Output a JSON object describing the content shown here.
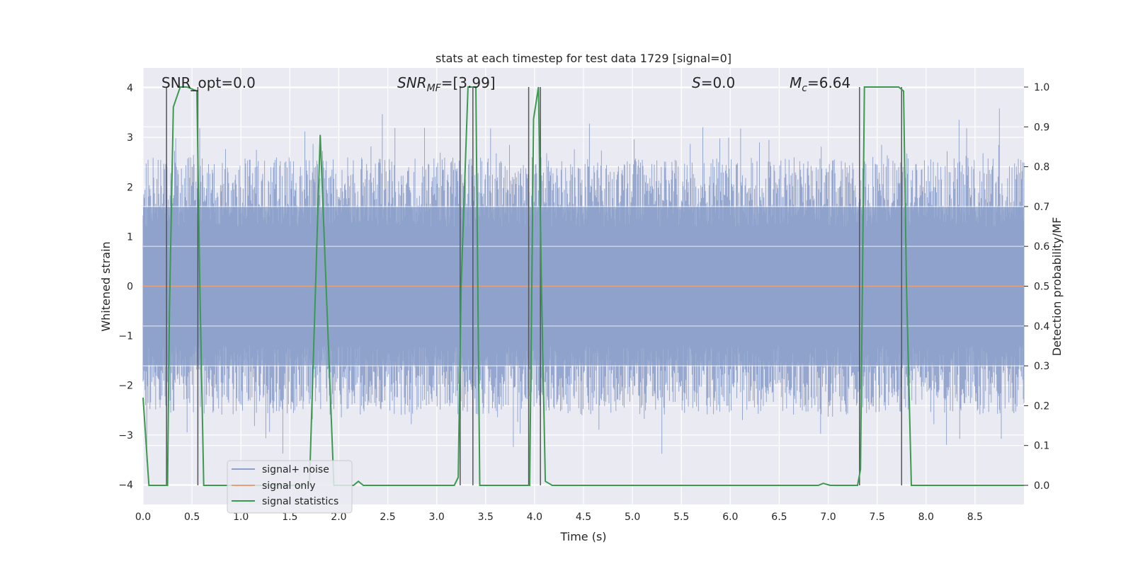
{
  "chart_data": {
    "type": "line",
    "title": "stats at each timestep for test data 1729 [signal=0]",
    "xlabel": "Time (s)",
    "ylabel": "Whitened strain",
    "y2label": "Detection probability/MF",
    "xlim": [
      0,
      9.0
    ],
    "ylim": [
      -4.4,
      4.4
    ],
    "y2lim": [
      -0.048,
      1.048
    ],
    "xticks": [
      "0.0",
      "0.5",
      "1.0",
      "1.5",
      "2.0",
      "2.5",
      "3.0",
      "3.5",
      "4.0",
      "4.5",
      "5.0",
      "5.5",
      "6.0",
      "6.5",
      "7.0",
      "7.5",
      "8.0",
      "8.5"
    ],
    "yticks": [
      "4",
      "3",
      "2",
      "1",
      "0",
      "−1",
      "−2",
      "−3",
      "−4"
    ],
    "y2ticks": [
      "1.0",
      "0.9",
      "0.8",
      "0.7",
      "0.6",
      "0.5",
      "0.4",
      "0.3",
      "0.2",
      "0.1",
      "0.0"
    ],
    "annotations": {
      "snr_opt": "SNR_opt=0.0",
      "snr_mf_base": "SNR",
      "snr_mf_sub": "MF",
      "snr_mf_val": "=[3.99]",
      "s_var": "S",
      "s_val": "=0.0",
      "mc_base": "M",
      "mc_sub": "c",
      "mc_val": "=6.64"
    },
    "legend_position": "lower-left",
    "series": [
      {
        "name": "signal+ noise",
        "color": "#8da0cb",
        "description": "noisy whitened strain roughly within ±3.5"
      },
      {
        "name": "signal only",
        "color": "#e5a07a",
        "values": "zero everywhere"
      },
      {
        "name": "signal statistics",
        "color": "#3c9a50",
        "axis": "right",
        "x": [
          0.0,
          0.06,
          0.25,
          0.27,
          0.31,
          0.38,
          0.45,
          0.55,
          0.58,
          0.62,
          1.7,
          1.81,
          1.95,
          2.15,
          2.2,
          2.25,
          3.18,
          3.22,
          3.25,
          3.32,
          3.4,
          3.44,
          3.95,
          3.99,
          4.04,
          4.07,
          4.11,
          4.18,
          6.9,
          6.95,
          7.02,
          7.3,
          7.33,
          7.37,
          7.72,
          7.77,
          7.8,
          7.85,
          9.0
        ],
        "y": [
          0.22,
          0.0,
          0.0,
          0.44,
          0.95,
          1.0,
          1.0,
          0.99,
          0.5,
          0.0,
          0.0,
          0.88,
          0.0,
          0.0,
          0.01,
          0.0,
          0.0,
          0.02,
          0.5,
          1.0,
          1.0,
          0.0,
          0.0,
          0.92,
          1.0,
          0.5,
          0.01,
          0.0,
          0.0,
          0.005,
          0.0,
          0.0,
          0.04,
          1.0,
          1.0,
          0.99,
          0.5,
          0.0,
          0.0
        ]
      }
    ],
    "vlines_x": [
      0.24,
      0.56,
      3.24,
      3.37,
      3.94,
      4.06,
      7.32,
      7.75
    ],
    "legend": [
      "signal+ noise",
      "signal only",
      "signal statistics"
    ]
  }
}
